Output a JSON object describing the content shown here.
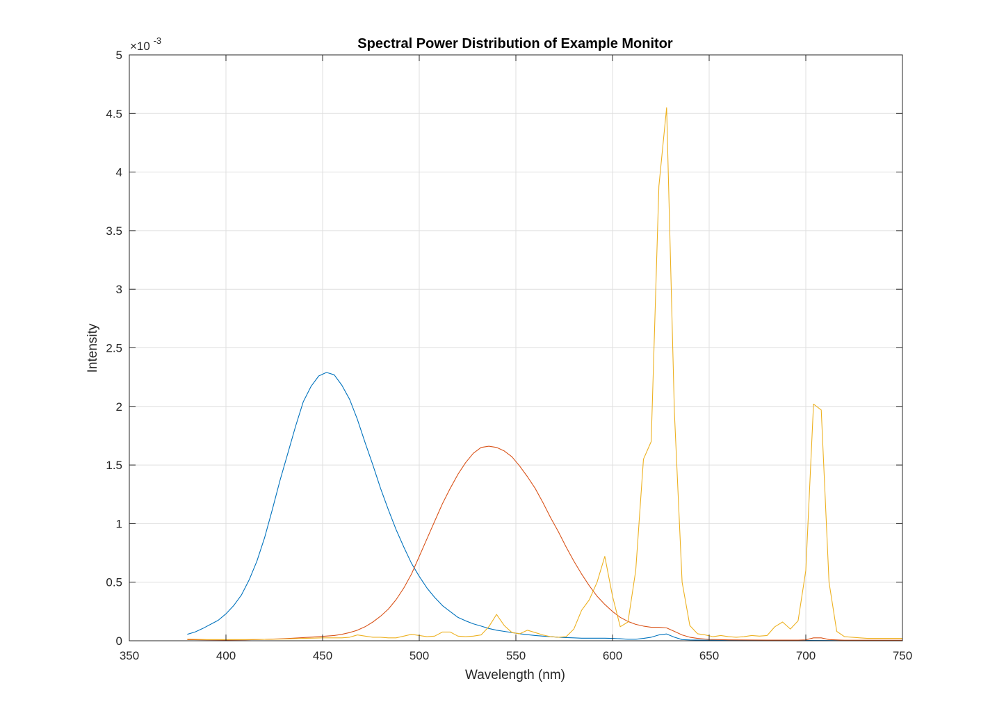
{
  "chart_data": {
    "type": "line",
    "title": "Spectral Power Distribution of Example Monitor",
    "xlabel": "Wavelength (nm)",
    "ylabel": "Intensity",
    "y_exponent_label": "×10",
    "y_exponent_power": "-3",
    "xlim": [
      350,
      750
    ],
    "ylim": [
      0,
      5
    ],
    "grid": true,
    "x_ticks": [
      350,
      400,
      450,
      500,
      550,
      600,
      650,
      700,
      750
    ],
    "y_ticks": [
      0,
      0.5,
      1,
      1.5,
      2,
      2.5,
      3,
      3.5,
      4,
      4.5,
      5
    ],
    "x_tick_labels": [
      "350",
      "400",
      "450",
      "500",
      "550",
      "600",
      "650",
      "700",
      "750"
    ],
    "y_tick_labels": [
      "0",
      "0.5",
      "1",
      "1.5",
      "2",
      "2.5",
      "3",
      "3.5",
      "4",
      "4.5",
      "5"
    ],
    "series": [
      {
        "color": "#0072bd",
        "points": [
          [
            380,
            0.055
          ],
          [
            384,
            0.075
          ],
          [
            388,
            0.105
          ],
          [
            392,
            0.14
          ],
          [
            396,
            0.175
          ],
          [
            400,
            0.23
          ],
          [
            404,
            0.3
          ],
          [
            408,
            0.39
          ],
          [
            412,
            0.52
          ],
          [
            416,
            0.68
          ],
          [
            420,
            0.88
          ],
          [
            424,
            1.12
          ],
          [
            428,
            1.37
          ],
          [
            432,
            1.6
          ],
          [
            436,
            1.83
          ],
          [
            440,
            2.04
          ],
          [
            444,
            2.17
          ],
          [
            448,
            2.26
          ],
          [
            452,
            2.29
          ],
          [
            456,
            2.27
          ],
          [
            460,
            2.18
          ],
          [
            464,
            2.06
          ],
          [
            468,
            1.89
          ],
          [
            472,
            1.69
          ],
          [
            476,
            1.5
          ],
          [
            480,
            1.3
          ],
          [
            484,
            1.12
          ],
          [
            488,
            0.95
          ],
          [
            492,
            0.8
          ],
          [
            496,
            0.66
          ],
          [
            500,
            0.55
          ],
          [
            504,
            0.45
          ],
          [
            508,
            0.37
          ],
          [
            512,
            0.3
          ],
          [
            516,
            0.25
          ],
          [
            520,
            0.2
          ],
          [
            524,
            0.17
          ],
          [
            528,
            0.145
          ],
          [
            532,
            0.125
          ],
          [
            536,
            0.105
          ],
          [
            540,
            0.09
          ],
          [
            544,
            0.08
          ],
          [
            548,
            0.07
          ],
          [
            552,
            0.06
          ],
          [
            556,
            0.052
          ],
          [
            560,
            0.045
          ],
          [
            564,
            0.04
          ],
          [
            568,
            0.035
          ],
          [
            572,
            0.03
          ],
          [
            576,
            0.027
          ],
          [
            580,
            0.025
          ],
          [
            584,
            0.022
          ],
          [
            588,
            0.022
          ],
          [
            592,
            0.022
          ],
          [
            596,
            0.022
          ],
          [
            600,
            0.02
          ],
          [
            604,
            0.017
          ],
          [
            608,
            0.013
          ],
          [
            612,
            0.013
          ],
          [
            616,
            0.02
          ],
          [
            620,
            0.03
          ],
          [
            624,
            0.05
          ],
          [
            628,
            0.058
          ],
          [
            632,
            0.03
          ],
          [
            636,
            0.01
          ],
          [
            640,
            0.007
          ],
          [
            650,
            0.005
          ],
          [
            660,
            0.004
          ],
          [
            680,
            0.003
          ],
          [
            700,
            0.003
          ],
          [
            720,
            0.002
          ],
          [
            750,
            0.002
          ]
        ]
      },
      {
        "color": "#d95319",
        "points": [
          [
            380,
            0.01
          ],
          [
            390,
            0.008
          ],
          [
            400,
            0.006
          ],
          [
            410,
            0.008
          ],
          [
            420,
            0.012
          ],
          [
            430,
            0.018
          ],
          [
            440,
            0.027
          ],
          [
            448,
            0.035
          ],
          [
            456,
            0.045
          ],
          [
            460,
            0.055
          ],
          [
            464,
            0.07
          ],
          [
            468,
            0.09
          ],
          [
            472,
            0.12
          ],
          [
            476,
            0.16
          ],
          [
            480,
            0.21
          ],
          [
            484,
            0.27
          ],
          [
            488,
            0.35
          ],
          [
            492,
            0.45
          ],
          [
            496,
            0.57
          ],
          [
            500,
            0.72
          ],
          [
            504,
            0.87
          ],
          [
            508,
            1.02
          ],
          [
            512,
            1.17
          ],
          [
            516,
            1.3
          ],
          [
            520,
            1.42
          ],
          [
            524,
            1.52
          ],
          [
            528,
            1.6
          ],
          [
            532,
            1.65
          ],
          [
            536,
            1.66
          ],
          [
            540,
            1.65
          ],
          [
            544,
            1.62
          ],
          [
            548,
            1.57
          ],
          [
            552,
            1.49
          ],
          [
            556,
            1.4
          ],
          [
            560,
            1.3
          ],
          [
            564,
            1.18
          ],
          [
            568,
            1.05
          ],
          [
            572,
            0.93
          ],
          [
            576,
            0.8
          ],
          [
            580,
            0.68
          ],
          [
            584,
            0.57
          ],
          [
            588,
            0.47
          ],
          [
            592,
            0.38
          ],
          [
            596,
            0.31
          ],
          [
            600,
            0.25
          ],
          [
            604,
            0.2
          ],
          [
            608,
            0.165
          ],
          [
            612,
            0.14
          ],
          [
            616,
            0.125
          ],
          [
            620,
            0.115
          ],
          [
            624,
            0.115
          ],
          [
            628,
            0.11
          ],
          [
            632,
            0.08
          ],
          [
            636,
            0.05
          ],
          [
            640,
            0.03
          ],
          [
            644,
            0.02
          ],
          [
            650,
            0.012
          ],
          [
            660,
            0.008
          ],
          [
            680,
            0.006
          ],
          [
            696,
            0.006
          ],
          [
            700,
            0.008
          ],
          [
            704,
            0.025
          ],
          [
            708,
            0.025
          ],
          [
            712,
            0.01
          ],
          [
            720,
            0.005
          ],
          [
            750,
            0.005
          ]
        ]
      },
      {
        "color": "#edb120",
        "points": [
          [
            380,
            0.015
          ],
          [
            390,
            0.01
          ],
          [
            400,
            0.01
          ],
          [
            410,
            0.01
          ],
          [
            420,
            0.012
          ],
          [
            430,
            0.015
          ],
          [
            440,
            0.02
          ],
          [
            450,
            0.025
          ],
          [
            460,
            0.025
          ],
          [
            464,
            0.03
          ],
          [
            468,
            0.05
          ],
          [
            472,
            0.04
          ],
          [
            476,
            0.03
          ],
          [
            480,
            0.03
          ],
          [
            484,
            0.025
          ],
          [
            488,
            0.025
          ],
          [
            492,
            0.04
          ],
          [
            496,
            0.055
          ],
          [
            500,
            0.045
          ],
          [
            504,
            0.035
          ],
          [
            508,
            0.04
          ],
          [
            512,
            0.075
          ],
          [
            516,
            0.075
          ],
          [
            520,
            0.04
          ],
          [
            524,
            0.035
          ],
          [
            528,
            0.04
          ],
          [
            532,
            0.05
          ],
          [
            536,
            0.12
          ],
          [
            540,
            0.225
          ],
          [
            544,
            0.13
          ],
          [
            548,
            0.07
          ],
          [
            552,
            0.06
          ],
          [
            556,
            0.09
          ],
          [
            560,
            0.07
          ],
          [
            564,
            0.05
          ],
          [
            568,
            0.035
          ],
          [
            572,
            0.03
          ],
          [
            576,
            0.035
          ],
          [
            580,
            0.1
          ],
          [
            584,
            0.26
          ],
          [
            588,
            0.35
          ],
          [
            592,
            0.5
          ],
          [
            596,
            0.72
          ],
          [
            600,
            0.38
          ],
          [
            604,
            0.12
          ],
          [
            608,
            0.16
          ],
          [
            612,
            0.6
          ],
          [
            616,
            1.55
          ],
          [
            620,
            1.7
          ],
          [
            624,
            3.88
          ],
          [
            628,
            4.55
          ],
          [
            632,
            1.95
          ],
          [
            636,
            0.5
          ],
          [
            640,
            0.13
          ],
          [
            644,
            0.06
          ],
          [
            648,
            0.05
          ],
          [
            652,
            0.035
          ],
          [
            656,
            0.045
          ],
          [
            660,
            0.035
          ],
          [
            664,
            0.03
          ],
          [
            668,
            0.035
          ],
          [
            672,
            0.045
          ],
          [
            676,
            0.04
          ],
          [
            680,
            0.045
          ],
          [
            684,
            0.12
          ],
          [
            688,
            0.16
          ],
          [
            692,
            0.1
          ],
          [
            696,
            0.17
          ],
          [
            700,
            0.6
          ],
          [
            704,
            2.02
          ],
          [
            708,
            1.97
          ],
          [
            712,
            0.5
          ],
          [
            716,
            0.08
          ],
          [
            720,
            0.035
          ],
          [
            724,
            0.03
          ],
          [
            728,
            0.025
          ],
          [
            732,
            0.02
          ],
          [
            736,
            0.02
          ],
          [
            740,
            0.02
          ],
          [
            744,
            0.02
          ],
          [
            750,
            0.02
          ]
        ]
      }
    ]
  }
}
